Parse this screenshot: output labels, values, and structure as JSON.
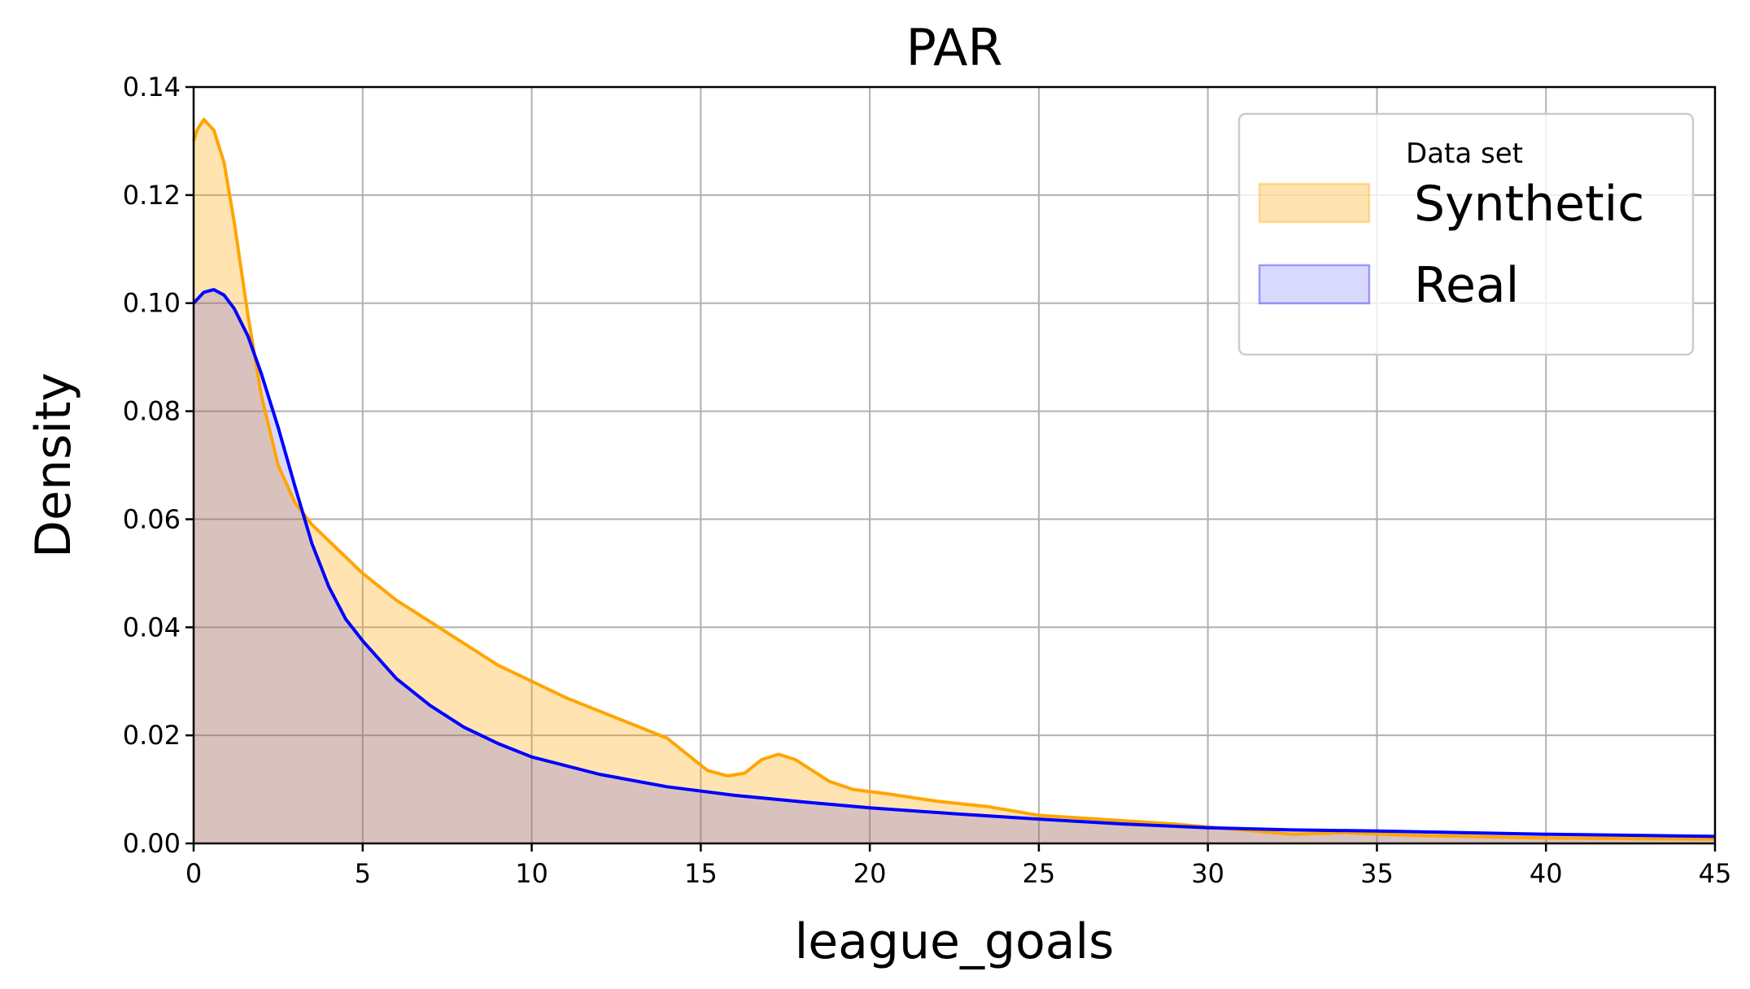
{
  "chart_data": {
    "type": "area",
    "title": "PAR",
    "xlabel": "league_goals",
    "ylabel": "Density",
    "xlim": [
      0,
      45
    ],
    "ylim": [
      0,
      0.14
    ],
    "xticks": [
      0,
      5,
      10,
      15,
      20,
      25,
      30,
      35,
      40,
      45
    ],
    "yticks": [
      0.0,
      0.02,
      0.04,
      0.06,
      0.08,
      0.1,
      0.12,
      0.14
    ],
    "xtick_labels": [
      "0",
      "5",
      "10",
      "15",
      "20",
      "25",
      "30",
      "35",
      "40",
      "45"
    ],
    "ytick_labels": [
      "0.00",
      "0.02",
      "0.04",
      "0.06",
      "0.08",
      "0.10",
      "0.12",
      "0.14"
    ],
    "grid": true,
    "legend": {
      "title": "Data set",
      "placement": "top-right",
      "entries": [
        "Synthetic",
        "Real"
      ]
    },
    "series": [
      {
        "name": "Synthetic",
        "line_color": "#ffa500",
        "fill_color": "#ffa500",
        "fill_opacity": 0.3,
        "x": [
          0,
          0.1,
          0.3,
          0.6,
          0.9,
          1.2,
          1.6,
          2.0,
          2.5,
          3.0,
          3.5,
          4.0,
          5.0,
          6.0,
          7.0,
          8.0,
          9.0,
          10.0,
          11.0,
          12.0,
          13.0,
          14.0,
          14.6,
          15.2,
          15.8,
          16.3,
          16.8,
          17.3,
          17.8,
          18.3,
          18.8,
          19.5,
          20.5,
          22.0,
          23.5,
          25.0,
          27.0,
          29.0,
          31.0,
          32.5,
          34.0,
          36.0,
          40.0,
          45.0
        ],
        "y": [
          0.13,
          0.132,
          0.134,
          0.132,
          0.126,
          0.115,
          0.098,
          0.083,
          0.07,
          0.063,
          0.059,
          0.056,
          0.05,
          0.045,
          0.041,
          0.037,
          0.033,
          0.03,
          0.027,
          0.0245,
          0.022,
          0.0195,
          0.0165,
          0.0135,
          0.0125,
          0.013,
          0.0155,
          0.0165,
          0.0155,
          0.0135,
          0.0115,
          0.01,
          0.0092,
          0.0078,
          0.0068,
          0.0052,
          0.0044,
          0.0036,
          0.0025,
          0.0017,
          0.002,
          0.0015,
          0.001,
          0.0008
        ]
      },
      {
        "name": "Real",
        "line_color": "#0000ff",
        "fill_color": "#0000ff",
        "fill_opacity": 0.15,
        "x": [
          0,
          0.3,
          0.6,
          0.9,
          1.2,
          1.6,
          2.0,
          2.5,
          3.0,
          3.5,
          4.0,
          4.5,
          5.0,
          6.0,
          7.0,
          8.0,
          9.0,
          10.0,
          12.0,
          14.0,
          16.0,
          18.0,
          20.0,
          22.5,
          25.0,
          27.5,
          30.0,
          32.5,
          35.0,
          37.5,
          40.0,
          42.5,
          45.0
        ],
        "y": [
          0.1,
          0.102,
          0.1025,
          0.1015,
          0.099,
          0.094,
          0.087,
          0.077,
          0.066,
          0.0555,
          0.0475,
          0.0415,
          0.0375,
          0.0305,
          0.0255,
          0.0215,
          0.0185,
          0.016,
          0.0128,
          0.0105,
          0.0089,
          0.0077,
          0.0066,
          0.0055,
          0.0045,
          0.0036,
          0.0029,
          0.0025,
          0.0023,
          0.002,
          0.0017,
          0.0015,
          0.0013
        ]
      }
    ]
  }
}
